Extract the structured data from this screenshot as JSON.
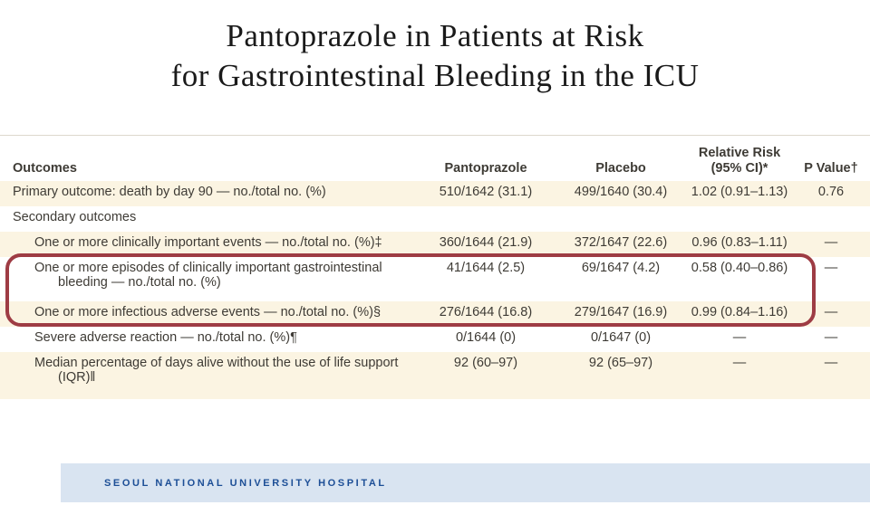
{
  "title": {
    "line1": "Pantoprazole in Patients at Risk",
    "line2": "for Gastrointestinal Bleeding in the ICU"
  },
  "table": {
    "headers": {
      "outcomes": "Outcomes",
      "pantoprazole": "Pantoprazole",
      "placebo": "Placebo",
      "relative_risk_line1": "Relative Risk",
      "relative_risk_line2": "(95% CI)*",
      "p_value": "P Value†"
    },
    "rows": [
      {
        "label": "Primary outcome: death by day 90 — no./total no. (%)",
        "pantoprazole": "510/1642 (31.1)",
        "placebo": "499/1640 (30.4)",
        "relative_risk": "1.02 (0.91–1.13)",
        "p_value": "0.76"
      },
      {
        "label": "Secondary outcomes",
        "pantoprazole": "",
        "placebo": "",
        "relative_risk": "",
        "p_value": ""
      },
      {
        "label": "One or more clinically important events — no./total no. (%)‡",
        "pantoprazole": "360/1644 (21.9)",
        "placebo": "372/1647 (22.6)",
        "relative_risk": "0.96 (0.83–1.11)",
        "p_value": "—"
      },
      {
        "label": "One or more episodes of clinically important gastrointestinal bleeding — no./total no. (%)",
        "pantoprazole": "41/1644 (2.5)",
        "placebo": "69/1647 (4.2)",
        "relative_risk": "0.58 (0.40–0.86)",
        "p_value": "—"
      },
      {
        "label": "One or more infectious adverse events — no./total no. (%)§",
        "pantoprazole": "276/1644 (16.8)",
        "placebo": "279/1647 (16.9)",
        "relative_risk": "0.99 (0.84–1.16)",
        "p_value": "—"
      },
      {
        "label": "Severe adverse reaction — no./total no. (%)¶",
        "pantoprazole": "0/1644 (0)",
        "placebo": "0/1647 (0)",
        "relative_risk": "—",
        "p_value": "—"
      },
      {
        "label": "Median percentage of days alive without the use of life support (IQR)‖",
        "pantoprazole": "92 (60–97)",
        "placebo": "92 (65–97)",
        "relative_risk": "—",
        "p_value": "—"
      }
    ]
  },
  "footer": {
    "org": "SEOUL NATIONAL UNIVERSITY HOSPITAL"
  },
  "colors": {
    "highlight_border": "#9e3c44",
    "row_stripe": "#fbf4e2",
    "footer_bar": "#d9e4f1",
    "footer_text": "#1c4e96",
    "table_text": "#3e3b35"
  }
}
